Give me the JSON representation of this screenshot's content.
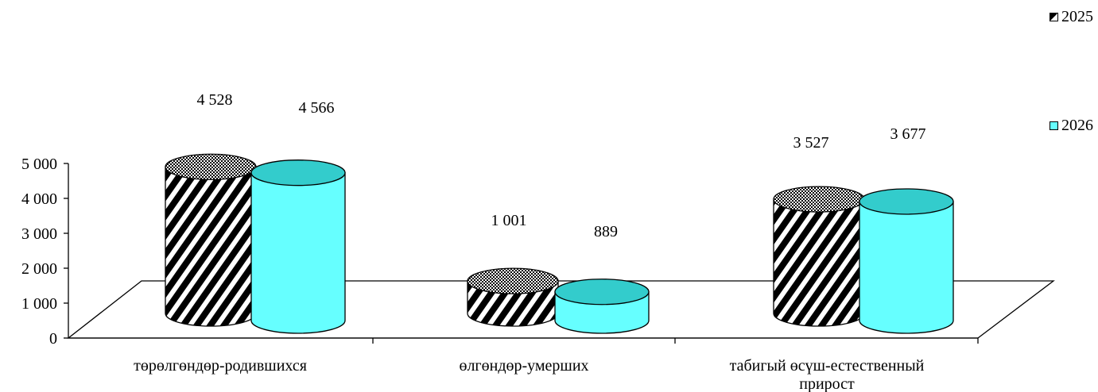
{
  "chart_data": {
    "type": "bar",
    "style": "3d-cylinder",
    "categories": [
      "төрөлгөндөр-родившихся",
      "өлгөндөр-умерших",
      "табигый өсүш-естественный прирост"
    ],
    "series": [
      {
        "name": "2025",
        "values": [
          4528,
          1001,
          3527
        ],
        "labels": [
          "4 528",
          "1 001",
          "3 527"
        ],
        "fill": "hatched-black-white"
      },
      {
        "name": "2026",
        "values": [
          4566,
          889,
          3677
        ],
        "labels": [
          "4 566",
          "889",
          "3 677"
        ],
        "fill": "#66ffff"
      }
    ],
    "ylim": [
      0,
      5000
    ],
    "yticks": [
      0,
      1000,
      2000,
      3000,
      4000,
      5000
    ],
    "ytick_labels": [
      "0",
      "1 000",
      "2 000",
      "3 000",
      "4 000",
      "5 000"
    ],
    "legend_position": "right",
    "grid": false,
    "colors": {
      "series2": "#66ffff",
      "series2_top": "#33cccc",
      "axis": "#000000"
    }
  }
}
